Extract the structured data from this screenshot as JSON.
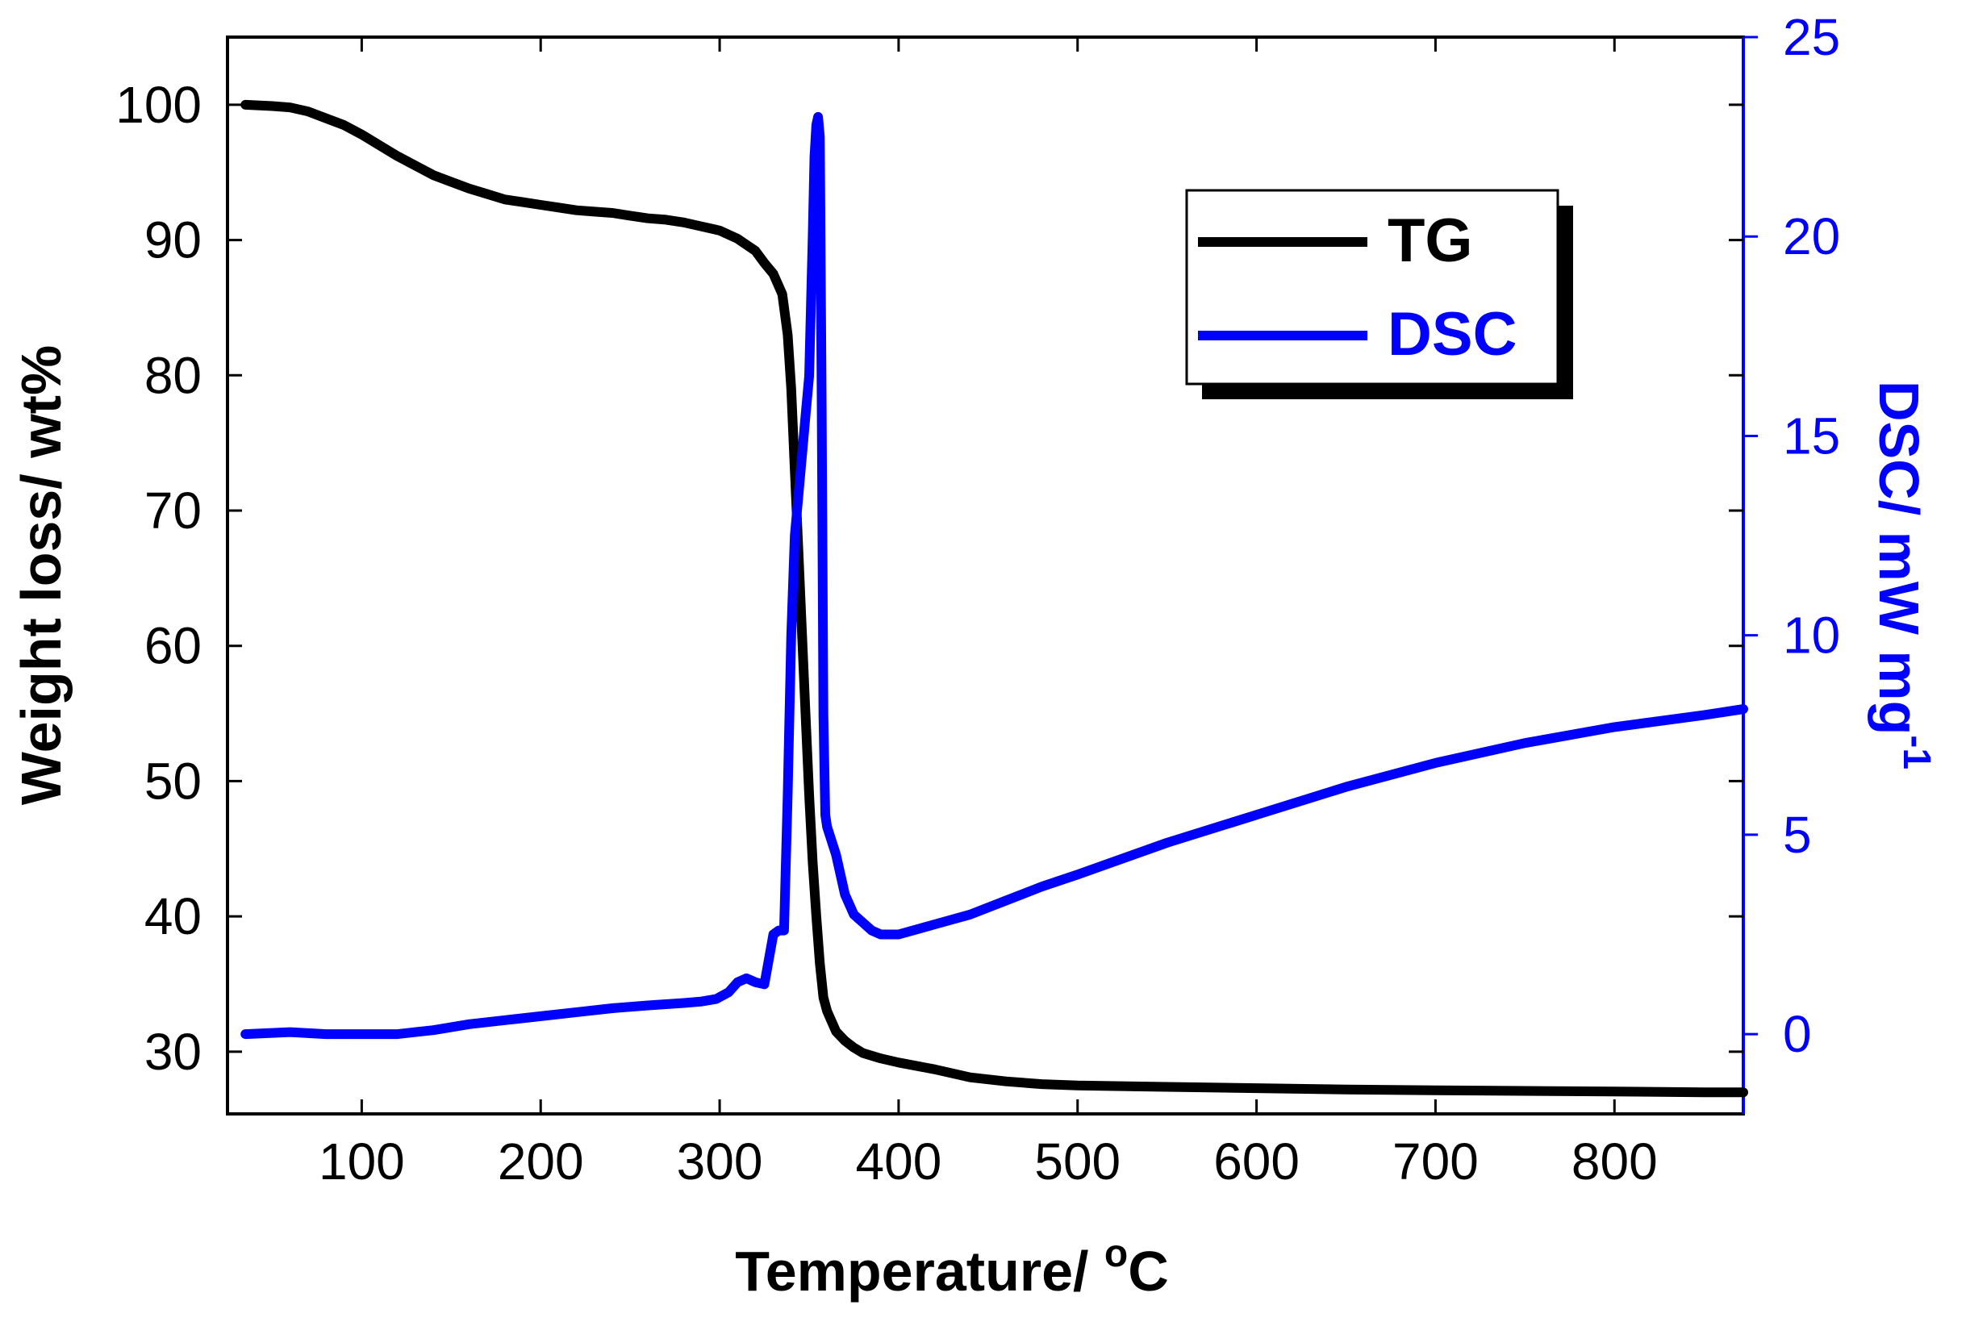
{
  "chart_data": {
    "type": "line",
    "title": "",
    "xlabel": "Temperature/ ",
    "xlabel_degree": "o",
    "xlabel_unit": "C",
    "ylabel": "Weight loss/ wt%",
    "y2label": "DSC/ mW mg",
    "y2label_exponent": "-1",
    "xlim": [
      25,
      872
    ],
    "ylim": [
      25.4,
      105
    ],
    "y2lim": [
      -2,
      25
    ],
    "x_ticks": [
      100,
      200,
      300,
      400,
      500,
      600,
      700,
      800
    ],
    "y_ticks": [
      30,
      40,
      50,
      60,
      70,
      80,
      90,
      100
    ],
    "y2_ticks": [
      0,
      5,
      10,
      15,
      20,
      25
    ],
    "legend_position": "top-right",
    "colors": {
      "TG": "#000000",
      "DSC": "#0000ff",
      "axis": "#000000",
      "axis_right": "#0000ff"
    },
    "series": [
      {
        "name": "TG",
        "axis": "left",
        "x": [
          35,
          50,
          60,
          70,
          80,
          90,
          100,
          110,
          120,
          130,
          140,
          150,
          160,
          170,
          180,
          190,
          200,
          210,
          220,
          230,
          240,
          250,
          260,
          270,
          280,
          290,
          300,
          310,
          320,
          325,
          330,
          335,
          338,
          340,
          342,
          344,
          346,
          348,
          350,
          352,
          354,
          356,
          358,
          360,
          365,
          370,
          375,
          380,
          390,
          400,
          420,
          440,
          460,
          480,
          500,
          550,
          600,
          650,
          700,
          750,
          800,
          850,
          872
        ],
        "values": [
          100.0,
          99.9,
          99.8,
          99.5,
          99.0,
          98.5,
          97.8,
          97.0,
          96.2,
          95.5,
          94.8,
          94.3,
          93.8,
          93.4,
          93.0,
          92.8,
          92.6,
          92.4,
          92.2,
          92.1,
          92.0,
          91.8,
          91.6,
          91.5,
          91.3,
          91.0,
          90.7,
          90.1,
          89.2,
          88.3,
          87.5,
          86.0,
          83.0,
          79.0,
          73.0,
          67.0,
          61.0,
          55.0,
          49.0,
          44.0,
          40.0,
          36.5,
          34.0,
          33.0,
          31.5,
          30.8,
          30.3,
          29.9,
          29.5,
          29.2,
          28.7,
          28.1,
          27.8,
          27.6,
          27.5,
          27.4,
          27.3,
          27.2,
          27.15,
          27.1,
          27.05,
          27.0,
          27.0
        ]
      },
      {
        "name": "DSC",
        "axis": "right",
        "x": [
          35,
          60,
          80,
          100,
          120,
          130,
          140,
          160,
          180,
          200,
          220,
          240,
          260,
          280,
          290,
          298,
          305,
          310,
          315,
          320,
          325,
          330,
          333,
          336,
          338,
          340,
          342,
          344,
          346,
          348,
          350,
          352,
          353,
          354,
          355,
          356,
          357,
          358,
          359,
          360,
          365,
          370,
          375,
          380,
          385,
          390,
          400,
          420,
          440,
          460,
          480,
          500,
          550,
          600,
          650,
          700,
          750,
          800,
          850,
          872
        ],
        "values": [
          0.0,
          0.05,
          0.0,
          0.0,
          0.0,
          0.05,
          0.1,
          0.25,
          0.35,
          0.45,
          0.55,
          0.65,
          0.72,
          0.78,
          0.82,
          0.88,
          1.05,
          1.3,
          1.4,
          1.3,
          1.25,
          2.5,
          2.6,
          2.6,
          6.0,
          10.0,
          12.5,
          13.5,
          14.5,
          15.5,
          16.5,
          20.0,
          22.0,
          22.8,
          23.0,
          22.5,
          16.0,
          8.0,
          5.5,
          5.2,
          4.5,
          3.5,
          3.0,
          2.8,
          2.6,
          2.5,
          2.5,
          2.75,
          3.0,
          3.35,
          3.7,
          4.0,
          4.8,
          5.5,
          6.2,
          6.8,
          7.3,
          7.7,
          8.0,
          8.15
        ]
      }
    ]
  }
}
